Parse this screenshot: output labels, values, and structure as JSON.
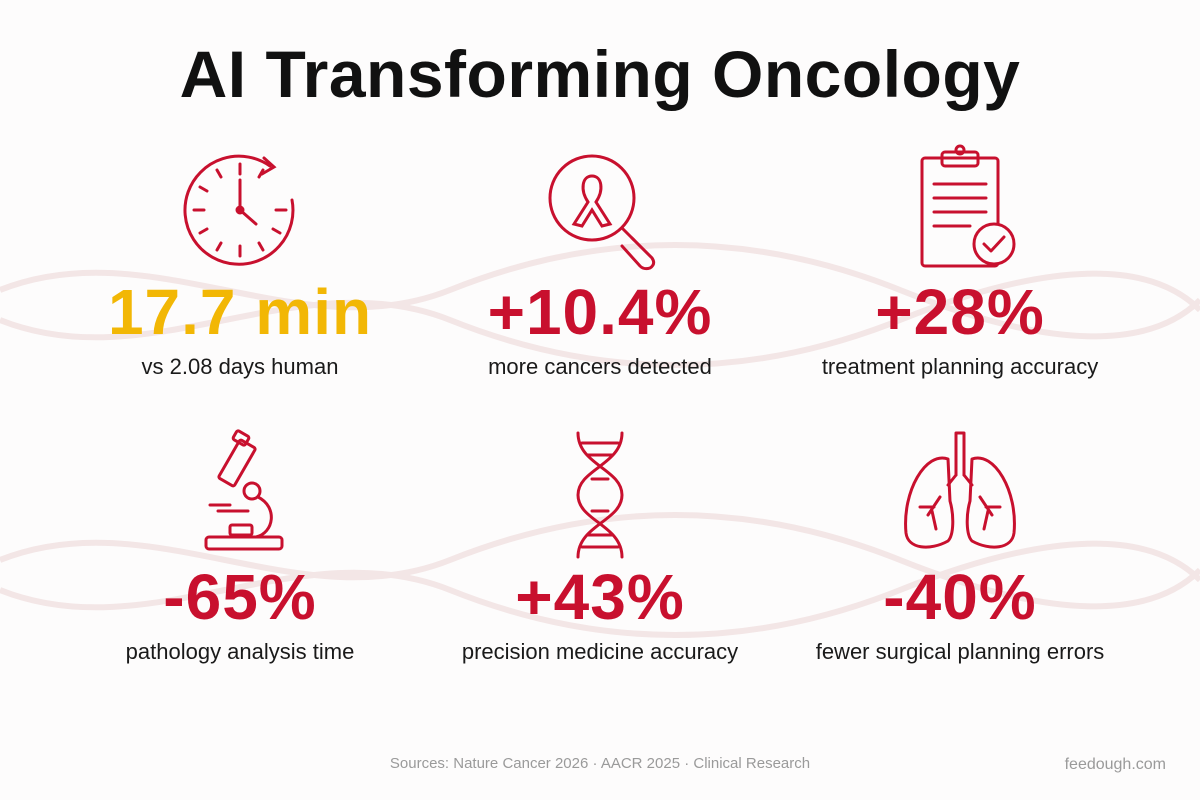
{
  "title": "AI Transforming Oncology",
  "colors": {
    "accent_red": "#c8102e",
    "accent_gold": "#f2b705",
    "text": "#111111",
    "muted": "#9a9a9a"
  },
  "stats": [
    {
      "icon": "clock-icon",
      "value": "17.7 min",
      "label": "vs 2.08 days human",
      "color": "gold"
    },
    {
      "icon": "cancer-ribbon-magnifier-icon",
      "value": "+10.4%",
      "label": "more cancers detected",
      "color": "red"
    },
    {
      "icon": "clipboard-check-icon",
      "value": "+28%",
      "label": "treatment planning accuracy",
      "color": "red"
    },
    {
      "icon": "microscope-icon",
      "value": "-65%",
      "label": "pathology analysis time",
      "color": "red"
    },
    {
      "icon": "dna-helix-icon",
      "value": "+43%",
      "label": "precision medicine accuracy",
      "color": "red"
    },
    {
      "icon": "lungs-icon",
      "value": "-40%",
      "label": "fewer surgical planning errors",
      "color": "red"
    }
  ],
  "footer": {
    "sources": "Sources: Nature Cancer 2026 · AACR 2025 · Clinical Research",
    "brand": "feedough.com"
  }
}
